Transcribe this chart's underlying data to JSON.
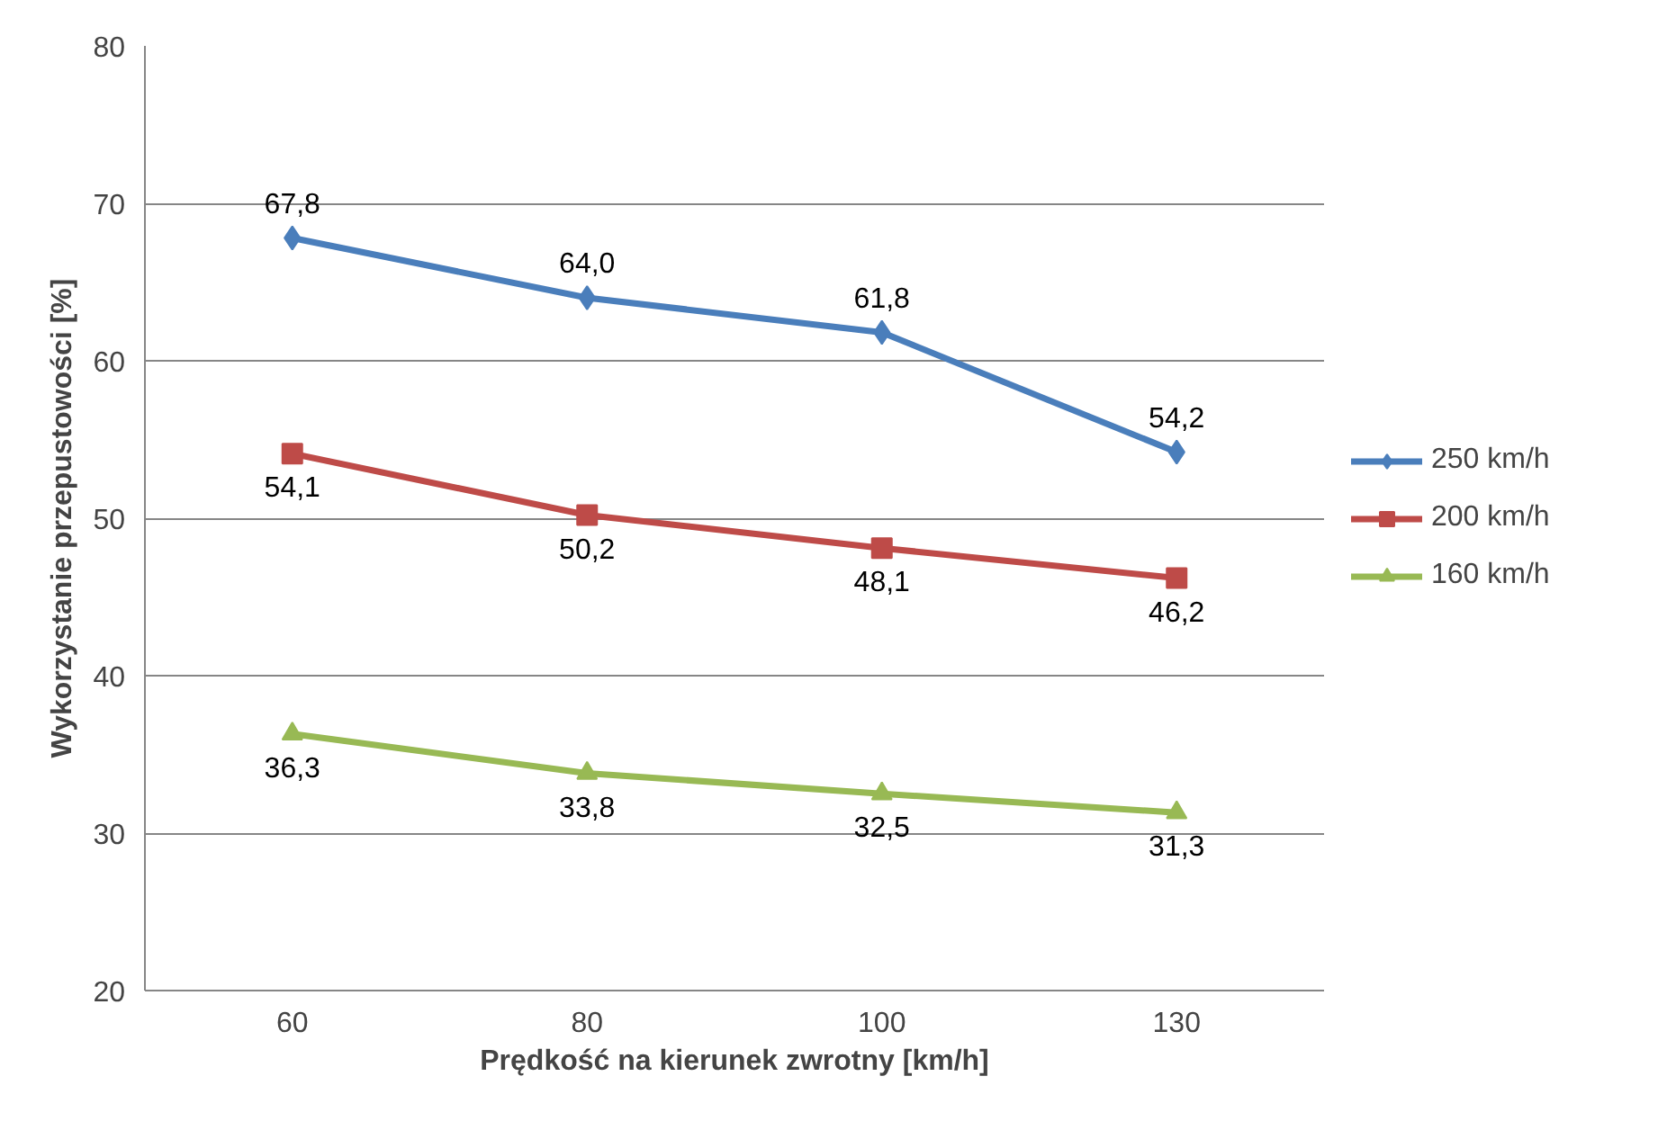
{
  "chart_data": {
    "type": "line",
    "xlabel": "Prędkość na kierunek zwrotny [km/h]",
    "ylabel": "Wykorzystanie przepustowości [%]",
    "categories": [
      "60",
      "80",
      "100",
      "130"
    ],
    "series": [
      {
        "name": "250 km/h",
        "color": "#4a7ebb",
        "marker": "diamond",
        "values": [
          67.8,
          64.0,
          61.8,
          54.2
        ],
        "value_labels": [
          "67,8",
          "64,0",
          "61,8",
          "54,2"
        ]
      },
      {
        "name": "200 km/h",
        "color": "#be4b48",
        "marker": "square",
        "values": [
          54.1,
          50.2,
          48.1,
          46.2
        ],
        "value_labels": [
          "54,1",
          "50,2",
          "48,1",
          "46,2"
        ]
      },
      {
        "name": "160 km/h",
        "color": "#98b954",
        "marker": "triangle",
        "values": [
          36.3,
          33.8,
          32.5,
          31.3
        ],
        "value_labels": [
          "36,3",
          "33,8",
          "32,5",
          "31,3"
        ]
      }
    ],
    "ylim": [
      20,
      80
    ],
    "yticks": [
      20,
      30,
      40,
      50,
      60,
      70,
      80
    ],
    "grid": "y",
    "legend": "right"
  }
}
